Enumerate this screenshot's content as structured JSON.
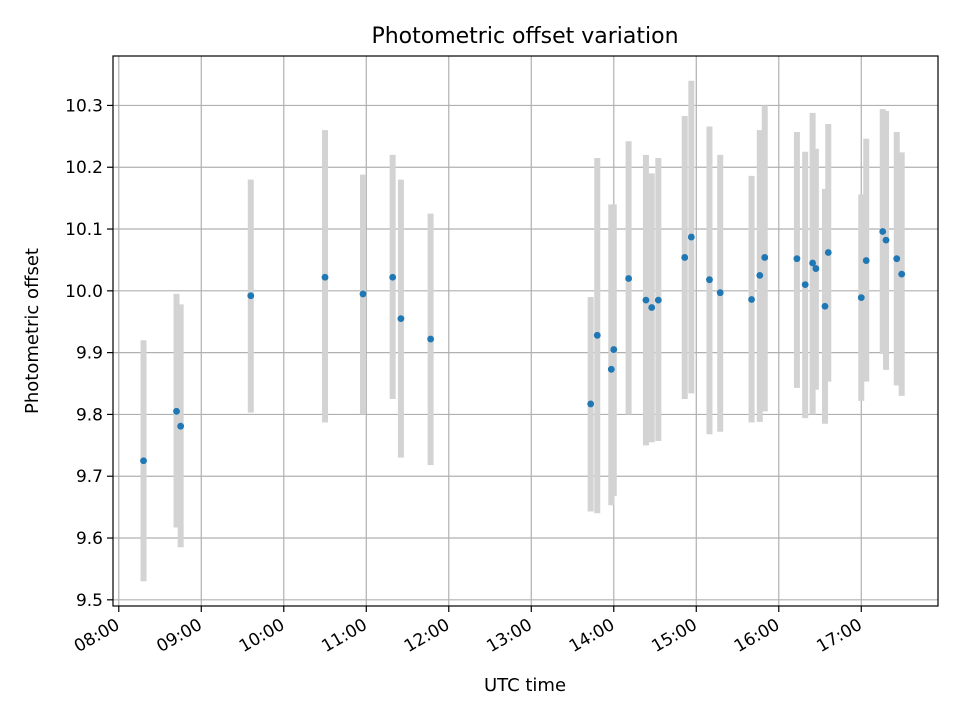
{
  "chart_data": {
    "type": "scatter",
    "title": "Photometric offset variation",
    "xlabel": "UTC time",
    "ylabel": "Photometric offset",
    "x_unit": "hours (UTC)",
    "xlim": [
      7.93,
      17.93
    ],
    "ylim": [
      9.49,
      10.38
    ],
    "grid": true,
    "x_ticks": [
      {
        "value": 8,
        "label": "08:00"
      },
      {
        "value": 9,
        "label": "09:00"
      },
      {
        "value": 10,
        "label": "10:00"
      },
      {
        "value": 11,
        "label": "11:00"
      },
      {
        "value": 12,
        "label": "12:00"
      },
      {
        "value": 13,
        "label": "13:00"
      },
      {
        "value": 14,
        "label": "14:00"
      },
      {
        "value": 15,
        "label": "15:00"
      },
      {
        "value": 16,
        "label": "16:00"
      },
      {
        "value": 17,
        "label": "17:00"
      }
    ],
    "y_ticks": [
      {
        "value": 9.5,
        "label": "9.5"
      },
      {
        "value": 9.6,
        "label": "9.6"
      },
      {
        "value": 9.7,
        "label": "9.7"
      },
      {
        "value": 9.8,
        "label": "9.8"
      },
      {
        "value": 9.9,
        "label": "9.9"
      },
      {
        "value": 10.0,
        "label": "10.0"
      },
      {
        "value": 10.1,
        "label": "10.1"
      },
      {
        "value": 10.2,
        "label": "10.2"
      },
      {
        "value": 10.3,
        "label": "10.3"
      }
    ],
    "colors": {
      "points": "#1f77b4",
      "errorbars": "#d3d3d3"
    },
    "series": [
      {
        "points": [
          {
            "x": 8.3,
            "y": 9.725,
            "err_low": 9.53,
            "err_high": 9.92
          },
          {
            "x": 8.7,
            "y": 9.805,
            "err_low": 9.617,
            "err_high": 9.995
          },
          {
            "x": 8.75,
            "y": 9.781,
            "err_low": 9.585,
            "err_high": 9.978
          },
          {
            "x": 9.6,
            "y": 9.992,
            "err_low": 9.803,
            "err_high": 10.18
          },
          {
            "x": 10.5,
            "y": 10.022,
            "err_low": 9.787,
            "err_high": 10.26
          },
          {
            "x": 10.96,
            "y": 9.995,
            "err_low": 9.8,
            "err_high": 10.188
          },
          {
            "x": 11.32,
            "y": 10.022,
            "err_low": 9.825,
            "err_high": 10.22
          },
          {
            "x": 11.42,
            "y": 9.955,
            "err_low": 9.73,
            "err_high": 10.18
          },
          {
            "x": 11.78,
            "y": 9.922,
            "err_low": 9.718,
            "err_high": 10.125
          },
          {
            "x": 13.72,
            "y": 9.817,
            "err_low": 9.643,
            "err_high": 9.99
          },
          {
            "x": 13.8,
            "y": 9.928,
            "err_low": 9.64,
            "err_high": 10.215
          },
          {
            "x": 13.97,
            "y": 9.873,
            "err_low": 9.653,
            "err_high": 10.14
          },
          {
            "x": 14.0,
            "y": 9.905,
            "err_low": 9.668,
            "err_high": 10.14
          },
          {
            "x": 14.18,
            "y": 10.02,
            "err_low": 9.8,
            "err_high": 10.242
          },
          {
            "x": 14.39,
            "y": 9.985,
            "err_low": 9.75,
            "err_high": 10.22
          },
          {
            "x": 14.46,
            "y": 9.973,
            "err_low": 9.755,
            "err_high": 10.19
          },
          {
            "x": 14.54,
            "y": 9.985,
            "err_low": 9.757,
            "err_high": 10.215
          },
          {
            "x": 14.86,
            "y": 10.054,
            "err_low": 9.825,
            "err_high": 10.283
          },
          {
            "x": 14.94,
            "y": 10.087,
            "err_low": 9.834,
            "err_high": 10.34
          },
          {
            "x": 15.16,
            "y": 10.018,
            "err_low": 9.768,
            "err_high": 10.266
          },
          {
            "x": 15.29,
            "y": 9.997,
            "err_low": 9.772,
            "err_high": 10.22
          },
          {
            "x": 15.67,
            "y": 9.986,
            "err_low": 9.787,
            "err_high": 10.186
          },
          {
            "x": 15.77,
            "y": 10.025,
            "err_low": 9.788,
            "err_high": 10.26
          },
          {
            "x": 15.83,
            "y": 10.054,
            "err_low": 9.805,
            "err_high": 10.3
          },
          {
            "x": 16.22,
            "y": 10.052,
            "err_low": 9.843,
            "err_high": 10.257
          },
          {
            "x": 16.32,
            "y": 10.01,
            "err_low": 9.794,
            "err_high": 10.225
          },
          {
            "x": 16.41,
            "y": 10.045,
            "err_low": 9.8,
            "err_high": 10.288
          },
          {
            "x": 16.45,
            "y": 10.036,
            "err_low": 9.84,
            "err_high": 10.23
          },
          {
            "x": 16.56,
            "y": 9.975,
            "err_low": 9.785,
            "err_high": 10.165
          },
          {
            "x": 16.6,
            "y": 10.062,
            "err_low": 9.853,
            "err_high": 10.27
          },
          {
            "x": 17.0,
            "y": 9.989,
            "err_low": 9.822,
            "err_high": 10.156
          },
          {
            "x": 17.06,
            "y": 10.049,
            "err_low": 9.853,
            "err_high": 10.246
          },
          {
            "x": 17.26,
            "y": 10.096,
            "err_low": 9.898,
            "err_high": 10.294
          },
          {
            "x": 17.3,
            "y": 10.082,
            "err_low": 9.872,
            "err_high": 10.291
          },
          {
            "x": 17.43,
            "y": 10.052,
            "err_low": 9.847,
            "err_high": 10.257
          },
          {
            "x": 17.49,
            "y": 10.027,
            "err_low": 9.83,
            "err_high": 10.224
          }
        ]
      }
    ]
  }
}
